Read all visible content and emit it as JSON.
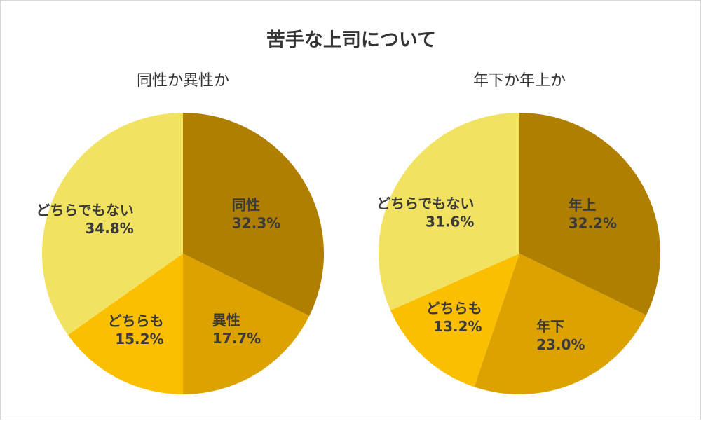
{
  "title": "苦手な上司について",
  "chart_data": [
    {
      "type": "pie",
      "title": "同性か異性か",
      "slices": [
        {
          "label": "同性",
          "value": 32.3,
          "display": "32.3%",
          "color": "#b07f00"
        },
        {
          "label": "異性",
          "value": 17.7,
          "display": "17.7%",
          "color": "#dca200"
        },
        {
          "label": "どちらも",
          "value": 15.2,
          "display": "15.2%",
          "color": "#fbbf00"
        },
        {
          "label": "どちらでもない",
          "value": 34.8,
          "display": "34.8%",
          "color": "#f2e262"
        }
      ]
    },
    {
      "type": "pie",
      "title": "年下か年上か",
      "slices": [
        {
          "label": "年上",
          "value": 32.2,
          "display": "32.2%",
          "color": "#b07f00"
        },
        {
          "label": "年下",
          "value": 23.0,
          "display": "23.0%",
          "color": "#dca200"
        },
        {
          "label": "どちらも",
          "value": 13.2,
          "display": "13.2%",
          "color": "#fbbf00"
        },
        {
          "label": "どちらでもない",
          "value": 31.6,
          "display": "31.6%",
          "color": "#f2e262"
        }
      ]
    }
  ]
}
